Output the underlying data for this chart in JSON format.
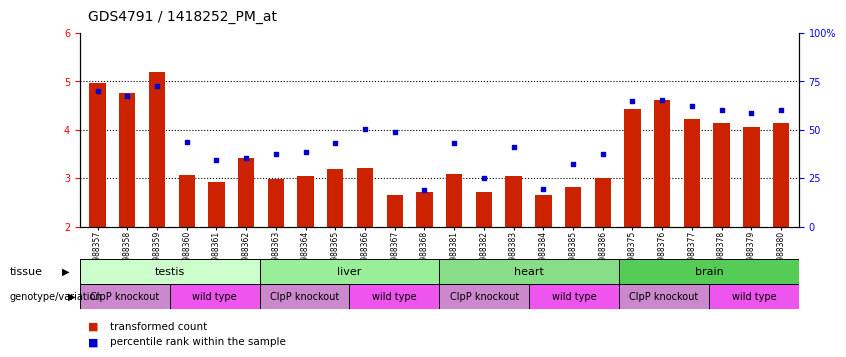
{
  "title": "GDS4791 / 1418252_PM_at",
  "samples": [
    "GSM988357",
    "GSM988358",
    "GSM988359",
    "GSM988360",
    "GSM988361",
    "GSM988362",
    "GSM988363",
    "GSM988364",
    "GSM988365",
    "GSM988366",
    "GSM988367",
    "GSM988368",
    "GSM988381",
    "GSM988382",
    "GSM988383",
    "GSM988384",
    "GSM988385",
    "GSM988386",
    "GSM988375",
    "GSM988376",
    "GSM988377",
    "GSM988378",
    "GSM988379",
    "GSM988380"
  ],
  "bar_values": [
    4.97,
    4.77,
    5.2,
    3.06,
    2.92,
    3.42,
    2.98,
    3.05,
    3.2,
    3.22,
    2.65,
    2.72,
    3.08,
    2.72,
    3.05,
    2.65,
    2.82,
    3.0,
    4.42,
    4.62,
    4.22,
    4.15,
    4.05,
    4.15
  ],
  "dot_values": [
    4.8,
    4.7,
    4.9,
    3.75,
    3.38,
    3.42,
    3.5,
    3.55,
    3.72,
    4.02,
    3.95,
    2.75,
    3.72,
    3.0,
    3.65,
    2.78,
    3.3,
    3.5,
    4.6,
    4.62,
    4.5,
    4.4,
    4.35,
    4.4
  ],
  "ylim": [
    2.0,
    6.0
  ],
  "bar_color": "#cc2200",
  "dot_color": "#0000cc",
  "tissues": [
    {
      "label": "testis",
      "start": 0,
      "end": 6,
      "color": "#ccffcc"
    },
    {
      "label": "liver",
      "start": 6,
      "end": 12,
      "color": "#99ee99"
    },
    {
      "label": "heart",
      "start": 12,
      "end": 18,
      "color": "#88dd88"
    },
    {
      "label": "brain",
      "start": 18,
      "end": 24,
      "color": "#55cc55"
    }
  ],
  "genotypes": [
    {
      "label": "ClpP knockout",
      "start": 0,
      "end": 3,
      "color": "#cc88cc"
    },
    {
      "label": "wild type",
      "start": 3,
      "end": 6,
      "color": "#ee55ee"
    },
    {
      "label": "ClpP knockout",
      "start": 6,
      "end": 9,
      "color": "#cc88cc"
    },
    {
      "label": "wild type",
      "start": 9,
      "end": 12,
      "color": "#ee55ee"
    },
    {
      "label": "ClpP knockout",
      "start": 12,
      "end": 15,
      "color": "#cc88cc"
    },
    {
      "label": "wild type",
      "start": 15,
      "end": 18,
      "color": "#ee55ee"
    },
    {
      "label": "ClpP knockout",
      "start": 18,
      "end": 21,
      "color": "#cc88cc"
    },
    {
      "label": "wild type",
      "start": 21,
      "end": 24,
      "color": "#ee55ee"
    }
  ]
}
